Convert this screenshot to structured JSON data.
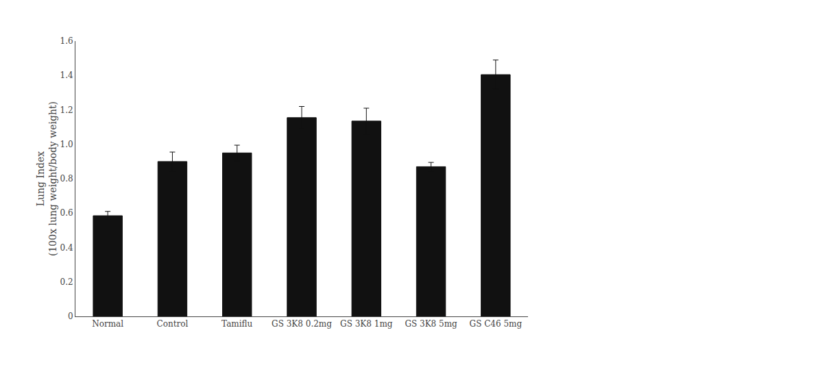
{
  "chart_data": {
    "type": "bar",
    "ylabel": "Lung Index\n(100x lung weight/body weight)",
    "categories": [
      "Normal",
      "Control",
      "Tamiflu",
      "GS 3K8 0.2mg",
      "GS 3K8 1mg",
      "GS 3K8 5mg",
      "GS C46 5mg"
    ],
    "values": [
      0.585,
      0.9,
      0.95,
      1.155,
      1.135,
      0.87,
      1.405
    ],
    "errors": [
      0.025,
      0.055,
      0.045,
      0.065,
      0.075,
      0.025,
      0.085
    ],
    "color": "#111111",
    "ylim": [
      0,
      1.6
    ],
    "yticks": [
      0,
      0.2,
      0.4,
      0.6,
      0.8,
      {
        "value": 1.0,
        "label": "1.0"
      },
      1.2,
      1.4,
      1.6
    ],
    "grid": false
  }
}
